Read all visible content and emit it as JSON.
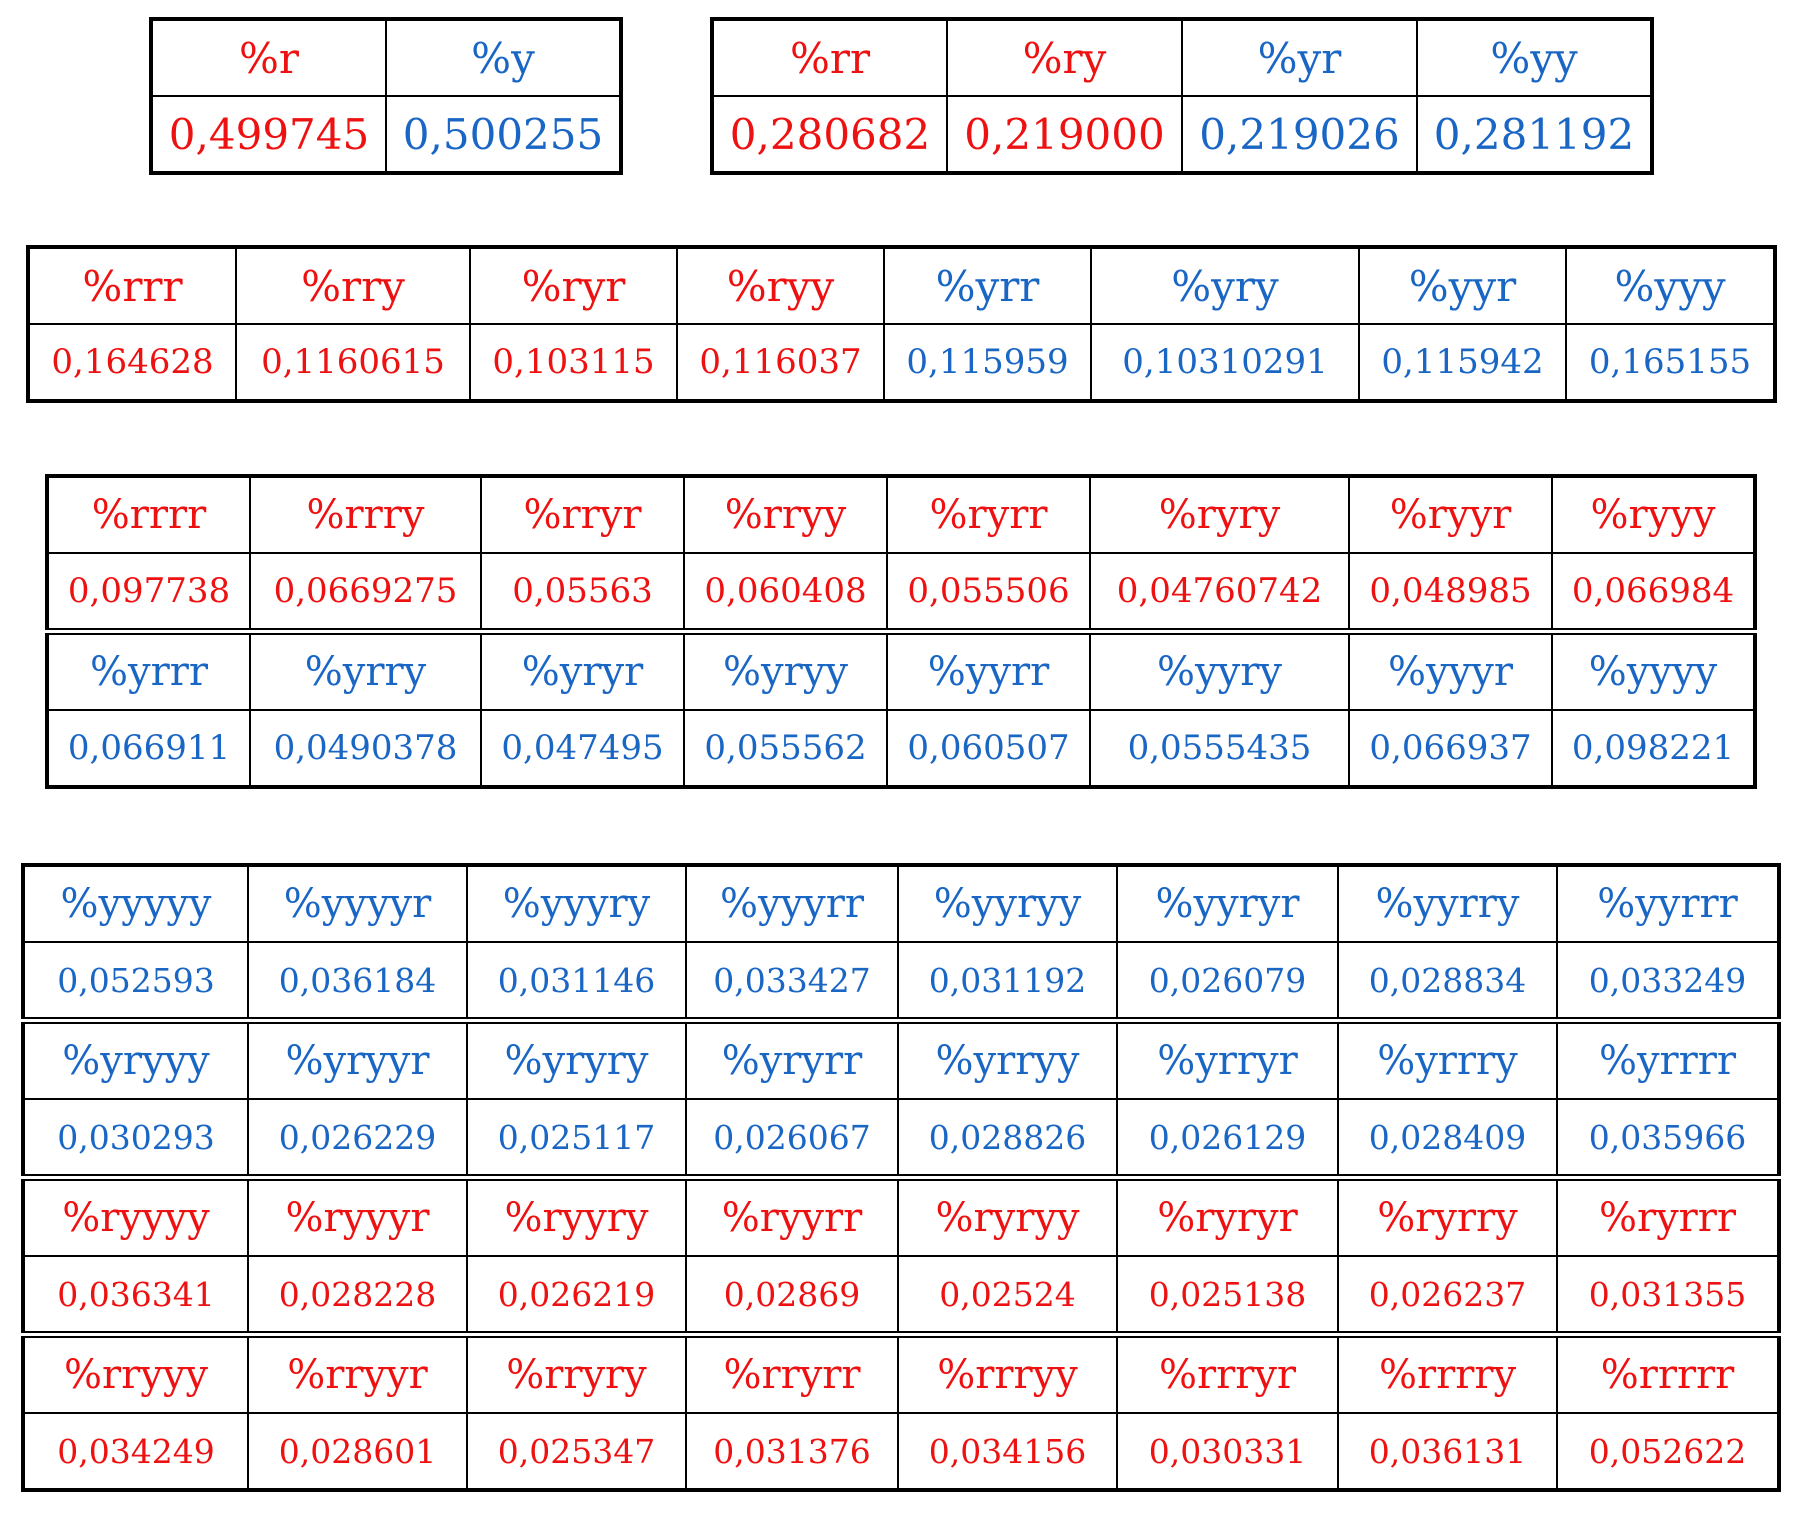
{
  "table1": {
    "headers": [
      "%r",
      "%y"
    ],
    "values": [
      "0,499745",
      "0,500255"
    ],
    "colors": [
      "red",
      "blue"
    ]
  },
  "table2": {
    "headers": [
      "%rr",
      "%ry",
      "%yr",
      "%yy"
    ],
    "values": [
      "0,280682",
      "0,219000",
      "0,219026",
      "0,281192"
    ],
    "colors": [
      "red",
      "red",
      "blue",
      "blue"
    ]
  },
  "table3": {
    "headers": [
      "%rrr",
      "%rry",
      "%ryr",
      "%ryy",
      "%yrr",
      "%yry",
      "%yyr",
      "%yyy"
    ],
    "values": [
      "0,164628",
      "0,1160615",
      "0,103115",
      "0,116037",
      "0,115959",
      "0,10310291",
      "0,115942",
      "0,165155"
    ],
    "colors": [
      "red",
      "red",
      "red",
      "red",
      "blue",
      "blue",
      "blue",
      "blue"
    ]
  },
  "table4": {
    "groups": [
      {
        "color": "red",
        "headers": [
          "%rrrr",
          "%rrry",
          "%rryr",
          "%rryy",
          "%ryrr",
          "%ryry",
          "%ryyr",
          "%ryyy"
        ],
        "values": [
          "0,097738",
          "0,0669275",
          "0,05563",
          "0,060408",
          "0,055506",
          "0,04760742",
          "0,048985",
          "0,066984"
        ]
      },
      {
        "color": "blue",
        "headers": [
          "%yrrr",
          "%yrry",
          "%yryr",
          "%yryy",
          "%yyrr",
          "%yyry",
          "%yyyr",
          "%yyyy"
        ],
        "values": [
          "0,066911",
          "0,0490378",
          "0,047495",
          "0,055562",
          "0,060507",
          "0,0555435",
          "0,066937",
          "0,098221"
        ]
      }
    ]
  },
  "table5": {
    "groups": [
      {
        "color": "blue",
        "headers": [
          "%yyyyy",
          "%yyyyr",
          "%yyyry",
          "%yyyrr",
          "%yyryy",
          "%yyryr",
          "%yyrry",
          "%yyrrr"
        ],
        "values": [
          "0,052593",
          "0,036184",
          "0,031146",
          "0,033427",
          "0,031192",
          "0,026079",
          "0,028834",
          "0,033249"
        ]
      },
      {
        "color": "blue",
        "headers": [
          "%yryyy",
          "%yryyr",
          "%yryry",
          "%yryrr",
          "%yrryy",
          "%yrryr",
          "%yrrry",
          "%yrrrr"
        ],
        "values": [
          "0,030293",
          "0,026229",
          "0,025117",
          "0,026067",
          "0,028826",
          "0,026129",
          "0,028409",
          "0,035966"
        ]
      },
      {
        "color": "red",
        "headers": [
          "%ryyyy",
          "%ryyyr",
          "%ryyry",
          "%ryyrr",
          "%ryryy",
          "%ryryr",
          "%ryrry",
          "%ryrrr"
        ],
        "values": [
          "0,036341",
          "0,028228",
          "0,026219",
          "0,02869",
          "0,02524",
          "0,025138",
          "0,026237",
          "0,031355"
        ]
      },
      {
        "color": "red",
        "headers": [
          "%rryyy",
          "%rryyr",
          "%rryry",
          "%rryrr",
          "%rrryy",
          "%rrryr",
          "%rrrry",
          "%rrrrr"
        ],
        "values": [
          "0,034249",
          "0,028601",
          "0,025347",
          "0,031376",
          "0,034156",
          "0,030331",
          "0,036131",
          "0,052622"
        ]
      }
    ]
  }
}
